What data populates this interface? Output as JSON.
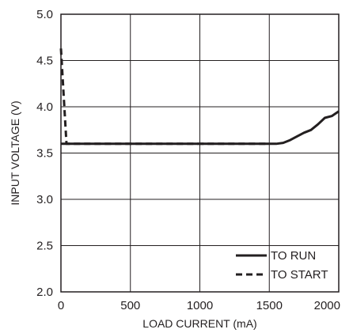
{
  "chart_data": {
    "type": "line",
    "xlabel": "LOAD CURRENT (mA)",
    "ylabel": "INPUT VOLTAGE (V)",
    "xlim": [
      0,
      2000
    ],
    "ylim": [
      2.0,
      5.0
    ],
    "x_ticks": [
      "0",
      "500",
      "1000",
      "1500",
      "2000"
    ],
    "y_ticks": [
      "2.0",
      "2.5",
      "3.0",
      "3.5",
      "4.0",
      "4.5",
      "5.0"
    ],
    "grid": true,
    "legend_position": "bottom-right",
    "colors": {
      "ink": "#231f20"
    },
    "series": [
      {
        "name": "TO RUN",
        "style": "solid",
        "x": [
          0,
          200,
          400,
          600,
          800,
          1000,
          1200,
          1400,
          1500,
          1550,
          1600,
          1650,
          1700,
          1750,
          1800,
          1850,
          1900,
          1950,
          2000
        ],
        "y": [
          3.6,
          3.6,
          3.6,
          3.6,
          3.6,
          3.6,
          3.6,
          3.6,
          3.6,
          3.6,
          3.61,
          3.64,
          3.68,
          3.72,
          3.75,
          3.81,
          3.88,
          3.9,
          3.95
        ]
      },
      {
        "name": "TO START",
        "style": "dashed",
        "x": [
          0,
          40,
          100,
          400,
          800,
          1200,
          1500
        ],
        "y": [
          4.63,
          3.6,
          3.6,
          3.6,
          3.6,
          3.6,
          3.6
        ]
      }
    ]
  }
}
